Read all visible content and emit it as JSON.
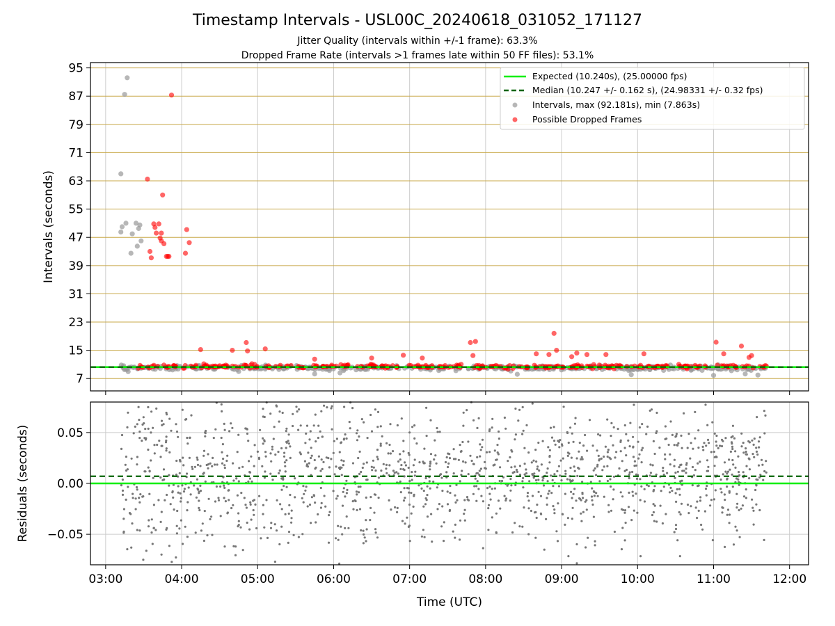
{
  "figure": {
    "title": "Timestamp Intervals - USL00C_20240618_031052_171127",
    "subtitle_1": "Jitter Quality (intervals within +/-1 frame): 63.3%",
    "subtitle_2": "Dropped Frame Rate (intervals >1 frames late within 50 FF files): 53.1%"
  },
  "chart_data": [
    {
      "type": "scatter",
      "panel": "intervals",
      "ylabel": "Intervals (seconds)",
      "xlabel": "",
      "x_unit": "time of day (UTC)",
      "xlim": [
        "02:48",
        "12:15"
      ],
      "ylim": [
        3.5,
        96.5
      ],
      "yticks": [
        7,
        15,
        23,
        31,
        39,
        47,
        55,
        63,
        71,
        79,
        87,
        95
      ],
      "grid": {
        "x": true,
        "y": true,
        "y_color": "#c8a848"
      },
      "legend_position": "top-right",
      "legend": [
        "Expected (10.240s), (25.00000 fps)",
        "Median (10.247 +/- 0.162 s), (24.98331 +/- 0.32 fps)",
        "Intervals, max (92.181s), min (7.863s)",
        "Possible Dropped Frames"
      ],
      "expected_line": {
        "y": 10.24,
        "color": "#00ee00"
      },
      "median_line": {
        "y": 10.247,
        "color": "#006400"
      },
      "series": [
        {
          "name": "Intervals, max (92.181s), min (7.863s)",
          "color": "#999999",
          "band": {
            "x_start": "03:12",
            "x_end": "11:42",
            "y_center": 10.0,
            "y_spread": 0.6
          },
          "points": [
            {
              "x": "03:12",
              "y": 65.0
            },
            {
              "x": "03:15",
              "y": 87.5
            },
            {
              "x": "03:17",
              "y": 92.2
            },
            {
              "x": "03:12",
              "y": 48.5
            },
            {
              "x": "03:13",
              "y": 50.0
            },
            {
              "x": "03:16",
              "y": 51.0
            },
            {
              "x": "03:20",
              "y": 42.5
            },
            {
              "x": "03:21",
              "y": 48.0
            },
            {
              "x": "03:24",
              "y": 51.0
            },
            {
              "x": "03:25",
              "y": 44.5
            },
            {
              "x": "03:26",
              "y": 49.5
            },
            {
              "x": "03:27",
              "y": 50.5
            },
            {
              "x": "03:28",
              "y": 46.0
            },
            {
              "x": "04:45",
              "y": 9.0
            },
            {
              "x": "05:45",
              "y": 8.3
            },
            {
              "x": "06:05",
              "y": 8.6
            },
            {
              "x": "08:25",
              "y": 8.2
            },
            {
              "x": "09:55",
              "y": 8.1
            },
            {
              "x": "11:00",
              "y": 7.9
            },
            {
              "x": "11:25",
              "y": 8.3
            },
            {
              "x": "11:35",
              "y": 8.0
            }
          ]
        },
        {
          "name": "Possible Dropped Frames",
          "color": "#ff0000",
          "band": {
            "x_start": "03:25",
            "x_end": "11:42",
            "y_center": 10.4,
            "y_spread": 0.5
          },
          "points": [
            {
              "x": "03:52",
              "y": 87.3
            },
            {
              "x": "03:33",
              "y": 63.5
            },
            {
              "x": "03:45",
              "y": 59.0
            },
            {
              "x": "03:38",
              "y": 50.8
            },
            {
              "x": "03:42",
              "y": 50.8
            },
            {
              "x": "03:39",
              "y": 49.8
            },
            {
              "x": "03:44",
              "y": 48.2
            },
            {
              "x": "03:40",
              "y": 48.2
            },
            {
              "x": "03:43",
              "y": 46.8
            },
            {
              "x": "03:44",
              "y": 46.0
            },
            {
              "x": "03:46",
              "y": 45.2
            },
            {
              "x": "03:35",
              "y": 43.0
            },
            {
              "x": "03:36",
              "y": 41.2
            },
            {
              "x": "03:48",
              "y": 41.6
            },
            {
              "x": "03:49",
              "y": 41.6
            },
            {
              "x": "03:50",
              "y": 41.6
            },
            {
              "x": "04:04",
              "y": 49.2
            },
            {
              "x": "04:06",
              "y": 45.5
            },
            {
              "x": "04:03",
              "y": 42.5
            },
            {
              "x": "04:15",
              "y": 15.2
            },
            {
              "x": "04:40",
              "y": 15.0
            },
            {
              "x": "04:51",
              "y": 17.2
            },
            {
              "x": "04:52",
              "y": 14.8
            },
            {
              "x": "05:06",
              "y": 15.4
            },
            {
              "x": "05:45",
              "y": 12.5
            },
            {
              "x": "06:30",
              "y": 12.8
            },
            {
              "x": "06:55",
              "y": 13.6
            },
            {
              "x": "07:10",
              "y": 12.8
            },
            {
              "x": "07:48",
              "y": 17.2
            },
            {
              "x": "07:52",
              "y": 17.5
            },
            {
              "x": "07:50",
              "y": 13.5
            },
            {
              "x": "08:40",
              "y": 14.0
            },
            {
              "x": "08:50",
              "y": 13.8
            },
            {
              "x": "08:54",
              "y": 19.8
            },
            {
              "x": "08:56",
              "y": 15.0
            },
            {
              "x": "09:08",
              "y": 13.2
            },
            {
              "x": "09:12",
              "y": 14.2
            },
            {
              "x": "09:20",
              "y": 13.8
            },
            {
              "x": "09:35",
              "y": 13.8
            },
            {
              "x": "10:05",
              "y": 14.0
            },
            {
              "x": "11:02",
              "y": 17.3
            },
            {
              "x": "11:08",
              "y": 14.0
            },
            {
              "x": "11:22",
              "y": 16.2
            },
            {
              "x": "11:28",
              "y": 13.0
            },
            {
              "x": "11:30",
              "y": 13.5
            }
          ]
        }
      ]
    },
    {
      "type": "scatter",
      "panel": "residuals",
      "ylabel": "Residuals (seconds)",
      "xlabel": "Time (UTC)",
      "xlim": [
        "02:48",
        "12:15"
      ],
      "ylim": [
        -0.08,
        0.08
      ],
      "yticks": [
        -0.05,
        0.0,
        0.05
      ],
      "ytick_labels": [
        "−0.05",
        "0.00",
        "0.05"
      ],
      "xticks": [
        "03:00",
        "04:00",
        "05:00",
        "06:00",
        "07:00",
        "08:00",
        "09:00",
        "10:00",
        "11:00",
        "12:00"
      ],
      "grid": {
        "x": true,
        "y": true
      },
      "zero_line": {
        "y": 0.0,
        "color": "#00ee00"
      },
      "median_line": {
        "y": 0.007,
        "color": "#006400"
      },
      "series": [
        {
          "name": "",
          "color": "#777777",
          "band": {
            "x_start": "03:12",
            "x_end": "11:42",
            "y_center": 0.007,
            "y_spread": 0.03
          }
        }
      ]
    }
  ],
  "colors": {
    "expected": "#00ee00",
    "median": "#006400",
    "intervals": "#999999",
    "dropped": "#ff0000",
    "residual_points": "#777777",
    "y_grid_top": "#c8a848",
    "grid": "#cccccc"
  }
}
